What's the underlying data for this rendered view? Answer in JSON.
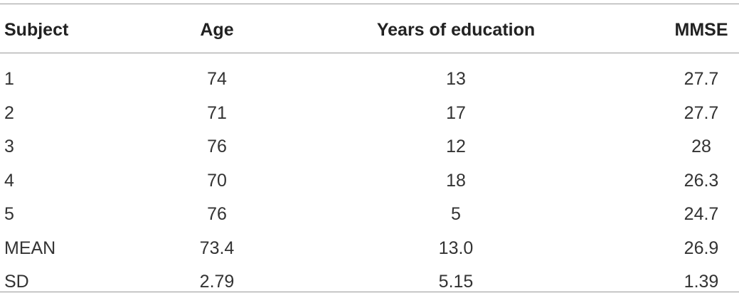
{
  "table": {
    "header": [
      "Subject",
      "Age",
      "Years of education",
      "MMSE"
    ],
    "rows": [
      [
        "1",
        "74",
        "13",
        "27.7"
      ],
      [
        "2",
        "71",
        "17",
        "27.7"
      ],
      [
        "3",
        "76",
        "12",
        "28"
      ],
      [
        "4",
        "70",
        "18",
        "26.3"
      ],
      [
        "5",
        "76",
        "5",
        "24.7"
      ],
      [
        "MEAN",
        "73.4",
        "13.0",
        "26.9"
      ],
      [
        "SD",
        "2.79",
        "5.15",
        "1.39"
      ]
    ]
  }
}
